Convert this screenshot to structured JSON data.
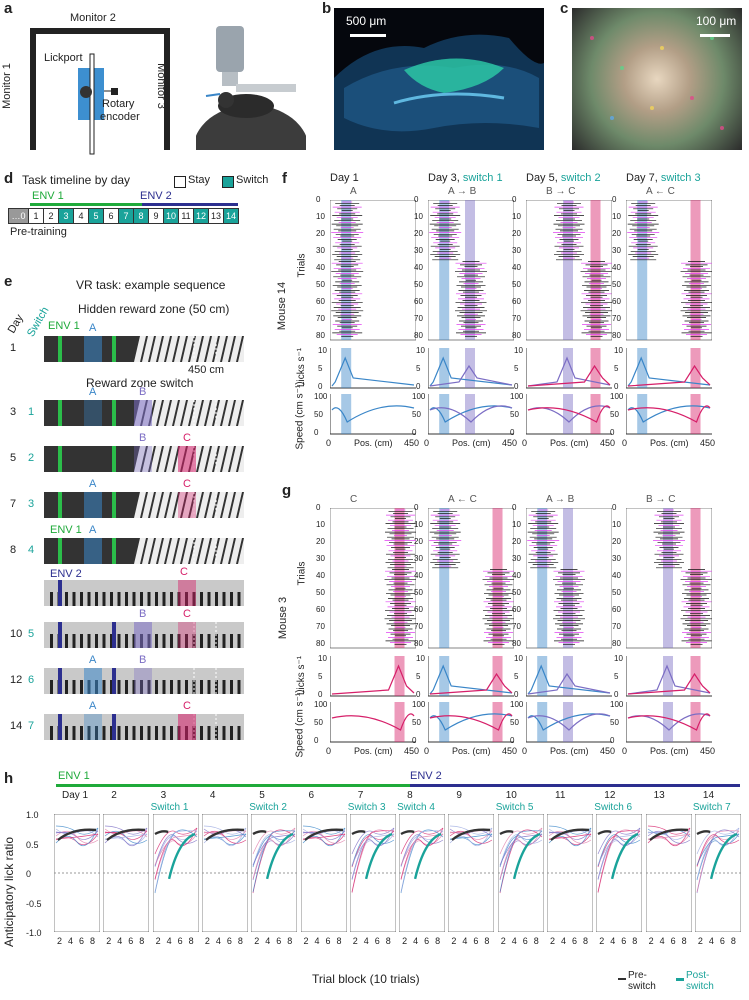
{
  "panels": {
    "a": {
      "label": "a",
      "monitor2": "Monitor 2",
      "monitor1": "Monitor 1",
      "monitor3": "Monitor 3",
      "lickport": "Lickport",
      "rotary": "Rotary",
      "encoder": "encoder"
    },
    "b": {
      "label": "b",
      "scale": "500 μm"
    },
    "c": {
      "label": "c",
      "scale": "100 μm"
    },
    "d": {
      "label": "d",
      "title": "Task timeline by day",
      "stay": "Stay",
      "switch": "Switch",
      "env1": "ENV 1",
      "env2": "ENV 2",
      "pretraining": "Pre-training",
      "days": [
        "…0",
        "1",
        "2",
        "3",
        "4",
        "5",
        "6",
        "7",
        "8",
        "9",
        "10",
        "11",
        "12",
        "13",
        "14"
      ]
    },
    "e": {
      "label": "e",
      "title": "VR task: example sequence",
      "day": "Day",
      "switch": "Switch",
      "env1": "ENV 1",
      "env2": "ENV 2",
      "hidden": "Hidden reward zone (50 cm)",
      "rzs": "Reward zone switch",
      "length": "450 cm",
      "rows": [
        {
          "day": "1",
          "sw": ""
        },
        {
          "day": "3",
          "sw": "1"
        },
        {
          "day": "5",
          "sw": "2"
        },
        {
          "day": "7",
          "sw": "3"
        },
        {
          "day": "8",
          "sw": "4"
        },
        {
          "day": "10",
          "sw": "5"
        },
        {
          "day": "12",
          "sw": "6"
        },
        {
          "day": "14",
          "sw": "7"
        }
      ]
    },
    "f": {
      "label": "f",
      "mouse": "Mouse 14",
      "cols": [
        {
          "day": "Day 1",
          "sw": "",
          "zones": "A"
        },
        {
          "day": "Day 3, ",
          "sw": "switch 1",
          "zones": "A → B"
        },
        {
          "day": "Day 5, ",
          "sw": "switch 2",
          "zones": "B → C"
        },
        {
          "day": "Day 7, ",
          "sw": "switch 3",
          "zones": "A ← C"
        }
      ]
    },
    "g": {
      "label": "g",
      "mouse": "Mouse 3",
      "cols": [
        {
          "zones": "C"
        },
        {
          "zones": "A ← C"
        },
        {
          "zones": "A → B"
        },
        {
          "zones": "B → C"
        }
      ]
    },
    "h": {
      "label": "h",
      "env1": "ENV 1",
      "env2": "ENV 2",
      "ylabel": "Anticipatory lick ratio",
      "xlabel": "Trial block (10 trials)",
      "pre": "Pre-switch",
      "post": "Post-switch",
      "days": [
        "Day 1",
        "2",
        "3",
        "4",
        "5",
        "6",
        "7",
        "8",
        "9",
        "10",
        "11",
        "12",
        "13",
        "14"
      ],
      "switches": [
        "",
        "",
        "Switch 1",
        "",
        "Switch 2",
        "",
        "Switch 3",
        "Switch 4",
        "",
        "Switch 5",
        "",
        "Switch 6",
        "",
        "Switch 7"
      ]
    }
  },
  "axes": {
    "trials": "Trials",
    "licks": "Licks s⁻¹",
    "speed": "Speed (cm s⁻¹)",
    "pos": "Pos. (cm)",
    "trial_ticks": [
      "0",
      "10",
      "20",
      "30",
      "40",
      "50",
      "60",
      "70",
      "80"
    ],
    "lick_ticks": [
      "0",
      "5",
      "10"
    ],
    "speed_ticks": [
      "0",
      "50",
      "100"
    ],
    "pos_ticks": [
      "0",
      "450"
    ],
    "h_yticks": [
      "1.0",
      "0.5",
      "0",
      "-0.5",
      "-1.0"
    ],
    "h_xticks": [
      "2",
      "4",
      "6",
      "8"
    ]
  }
}
